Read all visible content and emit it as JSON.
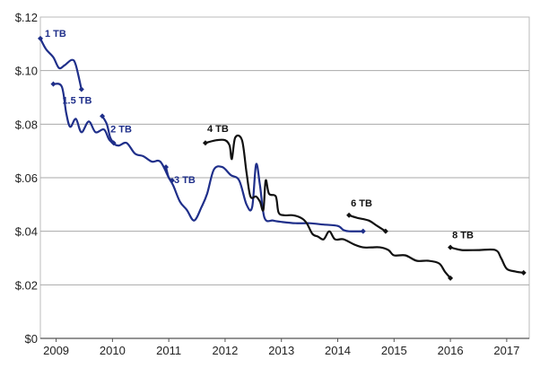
{
  "chart_data": {
    "type": "line",
    "title": "",
    "xlabel": "",
    "ylabel": "",
    "xlim": [
      2008.72,
      2017.4
    ],
    "ylim": [
      0,
      0.12
    ],
    "grid": true,
    "legend": "none",
    "y_ticks": [
      {
        "value": 0,
        "label": "$0"
      },
      {
        "value": 0.02,
        "label": "$.02"
      },
      {
        "value": 0.04,
        "label": "$.04"
      },
      {
        "value": 0.06,
        "label": "$.06"
      },
      {
        "value": 0.08,
        "label": "$.08"
      },
      {
        "value": 0.1,
        "label": "$.10"
      },
      {
        "value": 0.12,
        "label": "$.12"
      }
    ],
    "x_ticks": [
      {
        "value": 2009,
        "label": "2009"
      },
      {
        "value": 2010,
        "label": "2010"
      },
      {
        "value": 2011,
        "label": "2011"
      },
      {
        "value": 2012,
        "label": "2012"
      },
      {
        "value": 2013,
        "label": "2013"
      },
      {
        "value": 2014,
        "label": "2014"
      },
      {
        "value": 2015,
        "label": "2015"
      },
      {
        "value": 2016,
        "label": "2016"
      },
      {
        "value": 2017,
        "label": "2017"
      }
    ],
    "series": [
      {
        "name": "1 TB",
        "color": "#1f2f8a",
        "points": [
          [
            2008.72,
            0.112
          ],
          [
            2008.82,
            0.108
          ],
          [
            2008.95,
            0.105
          ],
          [
            2009.05,
            0.101
          ],
          [
            2009.15,
            0.102
          ],
          [
            2009.28,
            0.104
          ],
          [
            2009.35,
            0.102
          ],
          [
            2009.45,
            0.093
          ]
        ]
      },
      {
        "name": "1.5 TB",
        "color": "#1f2f8a",
        "points": [
          [
            2008.95,
            0.095
          ],
          [
            2009.1,
            0.094
          ],
          [
            2009.18,
            0.084
          ],
          [
            2009.25,
            0.079
          ],
          [
            2009.35,
            0.082
          ],
          [
            2009.45,
            0.077
          ],
          [
            2009.58,
            0.081
          ],
          [
            2009.7,
            0.077
          ],
          [
            2009.85,
            0.078
          ],
          [
            2009.95,
            0.074
          ],
          [
            2010.1,
            0.072
          ],
          [
            2010.25,
            0.073
          ],
          [
            2010.4,
            0.069
          ],
          [
            2010.55,
            0.068
          ],
          [
            2010.7,
            0.066
          ],
          [
            2010.85,
            0.066
          ],
          [
            2011.0,
            0.06
          ],
          [
            2011.08,
            0.057
          ],
          [
            2011.2,
            0.051
          ],
          [
            2011.32,
            0.048
          ],
          [
            2011.45,
            0.044
          ],
          [
            2011.58,
            0.049
          ],
          [
            2011.68,
            0.054
          ],
          [
            2011.8,
            0.063
          ],
          [
            2011.95,
            0.064
          ],
          [
            2012.1,
            0.061
          ],
          [
            2012.25,
            0.059
          ],
          [
            2012.38,
            0.05
          ],
          [
            2012.48,
            0.049
          ],
          [
            2012.55,
            0.065
          ],
          [
            2012.62,
            0.057
          ],
          [
            2012.7,
            0.045
          ],
          [
            2012.85,
            0.044
          ],
          [
            2013.0,
            0.0435
          ],
          [
            2013.25,
            0.043
          ],
          [
            2013.5,
            0.043
          ],
          [
            2013.75,
            0.0425
          ],
          [
            2014.0,
            0.042
          ],
          [
            2014.1,
            0.0405
          ],
          [
            2014.2,
            0.04
          ],
          [
            2014.45,
            0.04
          ]
        ]
      },
      {
        "name": "2 TB",
        "color": "#1f2f8a",
        "points": [
          [
            2009.82,
            0.083
          ],
          [
            2009.9,
            0.08
          ],
          [
            2009.96,
            0.075
          ],
          [
            2010.02,
            0.073
          ]
        ]
      },
      {
        "name": "3 TB",
        "color": "#1f2f8a",
        "points": [
          [
            2010.95,
            0.064
          ],
          [
            2011.0,
            0.06
          ],
          [
            2011.06,
            0.059
          ]
        ]
      },
      {
        "name": "4 TB",
        "color": "#111111",
        "points": [
          [
            2011.65,
            0.073
          ],
          [
            2011.85,
            0.074
          ],
          [
            2012.0,
            0.074
          ],
          [
            2012.08,
            0.072
          ],
          [
            2012.12,
            0.067
          ],
          [
            2012.18,
            0.075
          ],
          [
            2012.3,
            0.074
          ],
          [
            2012.38,
            0.062
          ],
          [
            2012.45,
            0.053
          ],
          [
            2012.55,
            0.053
          ],
          [
            2012.62,
            0.051
          ],
          [
            2012.68,
            0.048
          ],
          [
            2012.72,
            0.059
          ],
          [
            2012.78,
            0.054
          ],
          [
            2012.9,
            0.053
          ],
          [
            2012.95,
            0.047
          ],
          [
            2013.05,
            0.046
          ],
          [
            2013.2,
            0.046
          ],
          [
            2013.35,
            0.045
          ],
          [
            2013.45,
            0.043
          ],
          [
            2013.55,
            0.039
          ],
          [
            2013.65,
            0.038
          ],
          [
            2013.75,
            0.037
          ],
          [
            2013.85,
            0.04
          ],
          [
            2013.95,
            0.037
          ],
          [
            2014.1,
            0.037
          ],
          [
            2014.3,
            0.035
          ],
          [
            2014.45,
            0.034
          ],
          [
            2014.6,
            0.034
          ],
          [
            2014.75,
            0.034
          ],
          [
            2014.9,
            0.033
          ],
          [
            2015.0,
            0.031
          ],
          [
            2015.2,
            0.031
          ],
          [
            2015.4,
            0.029
          ],
          [
            2015.6,
            0.029
          ],
          [
            2015.8,
            0.028
          ],
          [
            2015.9,
            0.025
          ],
          [
            2016.0,
            0.0225
          ]
        ]
      },
      {
        "name": "6 TB",
        "color": "#111111",
        "points": [
          [
            2014.2,
            0.046
          ],
          [
            2014.35,
            0.045
          ],
          [
            2014.55,
            0.044
          ],
          [
            2014.7,
            0.042
          ],
          [
            2014.85,
            0.04
          ]
        ]
      },
      {
        "name": "8 TB",
        "color": "#111111",
        "points": [
          [
            2016.0,
            0.034
          ],
          [
            2016.2,
            0.033
          ],
          [
            2016.5,
            0.033
          ],
          [
            2016.8,
            0.033
          ],
          [
            2016.9,
            0.03
          ],
          [
            2017.0,
            0.026
          ],
          [
            2017.15,
            0.025
          ],
          [
            2017.3,
            0.0245
          ]
        ]
      }
    ]
  }
}
